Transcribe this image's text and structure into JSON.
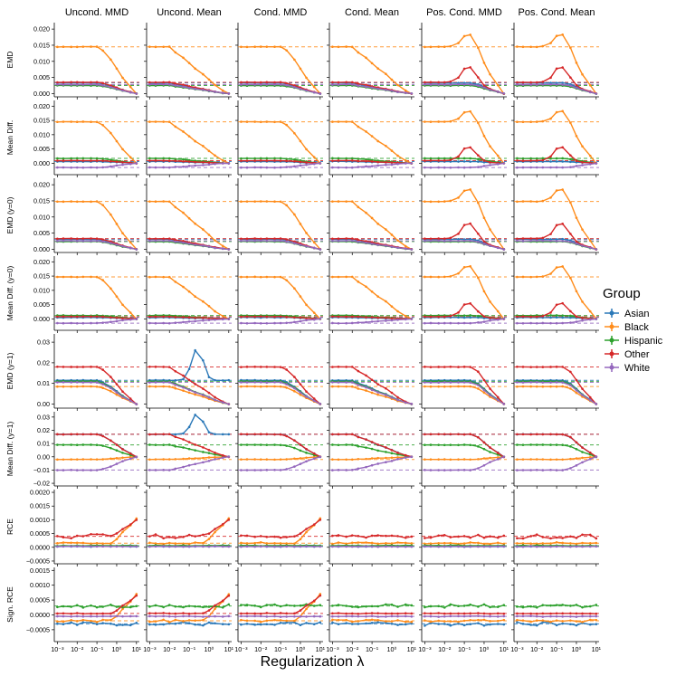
{
  "chart_data": {
    "type": "line",
    "xlabel": "Regularization λ",
    "x": [
      0.001,
      0.002,
      0.005,
      0.01,
      0.02,
      0.05,
      0.1,
      0.2,
      0.5,
      1,
      2,
      5,
      10
    ],
    "x_ticks": [
      "10⁻³",
      "10⁻²",
      "10⁻¹",
      "10⁰",
      "10¹"
    ],
    "x_tick_values": [
      0.001,
      0.01,
      0.1,
      1,
      10
    ],
    "columns": [
      "Uncond. MMD",
      "Uncond. Mean",
      "Cond. MMD",
      "Cond. Mean",
      "Pos. Cond. MMD",
      "Pos. Cond. Mean"
    ],
    "legend": {
      "title": "Group",
      "position": "right",
      "groups": [
        "Asian",
        "Black",
        "Hispanic",
        "Other",
        "White"
      ],
      "colors": [
        "#2a78b8",
        "#ff8c1a",
        "#2ca02c",
        "#d62728",
        "#9467bd"
      ]
    },
    "rows": [
      {
        "ylabel": "EMD",
        "ylim": [
          -0.001,
          0.022
        ],
        "ticks": [
          "0.000",
          "0.005",
          "0.010",
          "0.015",
          "0.020"
        ],
        "tick_values": [
          0,
          0.005,
          0.01,
          0.015,
          0.02
        ],
        "baseline": [
          0.0033,
          0.0145,
          0.0025,
          0.0035,
          0.0028
        ]
      },
      {
        "ylabel": "Mean Diff.",
        "ylim": [
          -0.004,
          0.022
        ],
        "ticks": [
          "0.000",
          "0.005",
          "0.010",
          "0.015",
          "0.020"
        ],
        "tick_values": [
          0,
          0.005,
          0.01,
          0.015,
          0.02
        ],
        "baseline": [
          0.0006,
          0.0145,
          0.0017,
          0.0009,
          -0.0015
        ]
      },
      {
        "ylabel": "EMD (y=0)",
        "ylim": [
          -0.001,
          0.022
        ],
        "ticks": [
          "0.000",
          "0.005",
          "0.010",
          "0.015",
          "0.020"
        ],
        "tick_values": [
          0,
          0.005,
          0.01,
          0.015,
          0.02
        ],
        "baseline": [
          0.0031,
          0.0148,
          0.0024,
          0.0033,
          0.0026
        ]
      },
      {
        "ylabel": "Mean Diff. (y=0)",
        "ylim": [
          -0.004,
          0.022
        ],
        "ticks": [
          "0.000",
          "0.005",
          "0.010",
          "0.015",
          "0.020"
        ],
        "tick_values": [
          0,
          0.005,
          0.01,
          0.015,
          0.02
        ],
        "baseline": [
          0.0005,
          0.0147,
          0.0012,
          0.0008,
          -0.0015
        ]
      },
      {
        "ylabel": "EMD (y=1)",
        "ylim": [
          -0.002,
          0.034
        ],
        "ticks": [
          "0.00",
          "0.01",
          "0.02",
          "0.03"
        ],
        "tick_values": [
          0,
          0.01,
          0.02,
          0.03
        ],
        "baseline": [
          0.0115,
          0.0085,
          0.011,
          0.018,
          0.0105
        ]
      },
      {
        "ylabel": "Mean Diff. (y=1)",
        "ylim": [
          -0.022,
          0.034
        ],
        "ticks": [
          "−0.02",
          "−0.01",
          "0.00",
          "0.01",
          "0.02",
          "0.03"
        ],
        "tick_values": [
          -0.02,
          -0.01,
          0,
          0.01,
          0.02,
          0.03
        ],
        "baseline": [
          0.017,
          -0.002,
          0.009,
          0.017,
          -0.01
        ]
      },
      {
        "ylabel": "RCE",
        "ylim": [
          -0.0006,
          0.0021
        ],
        "ticks": [
          "−0.0005",
          "0.0000",
          "0.0005",
          "0.0010",
          "0.0015",
          "0.0020"
        ],
        "tick_values": [
          -0.0005,
          0,
          0.0005,
          0.001,
          0.0015,
          0.002
        ],
        "baseline": [
          3e-05,
          0.00015,
          6e-05,
          0.0004,
          3e-05
        ]
      },
      {
        "ylabel": "Sign. RCE",
        "ylim": [
          -0.0009,
          0.0016
        ],
        "ticks": [
          "−0.0005",
          "0.0000",
          "0.0005",
          "0.0010",
          "0.0015"
        ],
        "tick_values": [
          -0.0005,
          0,
          0.0005,
          0.001,
          0.0015
        ],
        "baseline": [
          -0.0003,
          -0.0002,
          0.0003,
          5e-05,
          -5e-05
        ]
      }
    ]
  }
}
